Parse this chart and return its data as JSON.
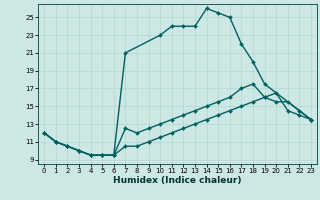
{
  "xlabel": "Humidex (Indice chaleur)",
  "bg_color": "#cde8e4",
  "line_color": "#006060",
  "grid_color": "#b0d8d0",
  "xlim": [
    -0.5,
    23.5
  ],
  "ylim": [
    8.5,
    26.5
  ],
  "xticks": [
    0,
    1,
    2,
    3,
    4,
    5,
    6,
    7,
    8,
    9,
    10,
    11,
    12,
    13,
    14,
    15,
    16,
    17,
    18,
    19,
    20,
    21,
    22,
    23
  ],
  "yticks": [
    9,
    11,
    13,
    15,
    17,
    19,
    21,
    23,
    25
  ],
  "series": [
    {
      "x": [
        0,
        1,
        2,
        3,
        4,
        5,
        6,
        7,
        10,
        11,
        12,
        13,
        14,
        15,
        16,
        17,
        18,
        19,
        23
      ],
      "y": [
        12,
        11,
        10.5,
        10,
        9.5,
        9.5,
        9.5,
        21,
        23,
        24,
        24,
        24,
        26,
        25.5,
        25,
        22,
        20,
        17.5,
        13.5
      ],
      "marker": "D",
      "markersize": 2.0,
      "linewidth": 1.0
    },
    {
      "x": [
        0,
        1,
        2,
        3,
        4,
        5,
        6,
        7,
        8,
        9,
        10,
        11,
        12,
        13,
        14,
        15,
        16,
        17,
        18,
        19,
        20,
        21,
        22,
        23
      ],
      "y": [
        12,
        11,
        10.5,
        10,
        9.5,
        9.5,
        9.5,
        12.5,
        12.0,
        12.5,
        13.0,
        13.5,
        14.0,
        14.5,
        15.0,
        15.5,
        16.0,
        17.0,
        17.5,
        16.0,
        15.5,
        15.5,
        14.5,
        13.5
      ],
      "marker": "D",
      "markersize": 2.0,
      "linewidth": 1.0
    },
    {
      "x": [
        0,
        1,
        2,
        3,
        4,
        5,
        6,
        7,
        8,
        9,
        10,
        11,
        12,
        13,
        14,
        15,
        16,
        17,
        18,
        19,
        20,
        21,
        22,
        23
      ],
      "y": [
        12,
        11,
        10.5,
        10,
        9.5,
        9.5,
        9.5,
        10.5,
        10.5,
        11.0,
        11.5,
        12.0,
        12.5,
        13.0,
        13.5,
        14.0,
        14.5,
        15.0,
        15.5,
        16.0,
        16.5,
        14.5,
        14.0,
        13.5
      ],
      "marker": "D",
      "markersize": 2.0,
      "linewidth": 1.0
    }
  ]
}
